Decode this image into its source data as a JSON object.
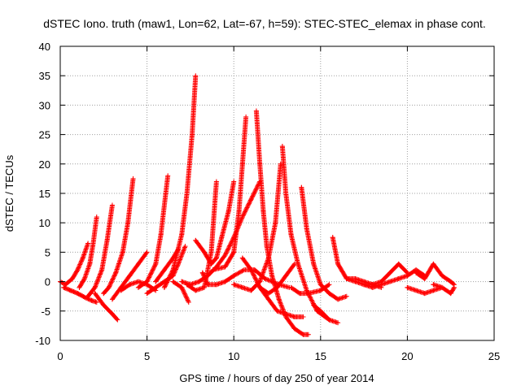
{
  "chart_data": {
    "type": "scatter",
    "title": "dSTEC Iono. truth (maw1, Lon=62, Lat=-67, h=59): STEC-STEC_elemax in phase cont.",
    "xlabel": "GPS time / hours of day 250 of year 2014",
    "ylabel": "dSTEC  / TECUs",
    "xlim": [
      0,
      25
    ],
    "ylim": [
      -10,
      40
    ],
    "xticks": [
      "0",
      "5",
      "10",
      "15",
      "20",
      "25"
    ],
    "yticks": [
      "-10",
      "-5",
      "0",
      "5",
      "10",
      "15",
      "20",
      "25",
      "30",
      "35",
      "40"
    ],
    "grid": true,
    "marker": "+",
    "color": "#ff0000",
    "series": [
      {
        "x": [
          0.0,
          0.3,
          0.7,
          1.0,
          1.3,
          1.6
        ],
        "y": [
          0.0,
          -0.5,
          0.5,
          2.0,
          4.0,
          6.5
        ]
      },
      {
        "x": [
          0.2,
          0.6,
          1.0,
          1.5,
          1.8,
          2.1
        ],
        "y": [
          -1.0,
          -1.5,
          -2.0,
          -2.8,
          -3.2,
          -3.5
        ]
      },
      {
        "x": [
          1.1,
          1.4,
          1.7,
          1.9,
          2.1
        ],
        "y": [
          -1.0,
          0.5,
          3.0,
          6.5,
          11.0
        ]
      },
      {
        "x": [
          1.6,
          2.0,
          2.4,
          2.7,
          3.0
        ],
        "y": [
          -2.5,
          -1.0,
          2.0,
          7.0,
          13.0
        ]
      },
      {
        "x": [
          2.0,
          2.5,
          3.0,
          3.3
        ],
        "y": [
          -2.0,
          -4.0,
          -5.5,
          -6.5
        ]
      },
      {
        "x": [
          2.5,
          2.8,
          3.2,
          3.6,
          3.9,
          4.2
        ],
        "y": [
          -2.0,
          -1.0,
          1.5,
          5.0,
          10.0,
          17.5
        ]
      },
      {
        "x": [
          3.0,
          3.5,
          4.0,
          4.5,
          5.0
        ],
        "y": [
          -3.0,
          -1.0,
          1.0,
          3.0,
          5.0
        ]
      },
      {
        "x": [
          3.5,
          4.0,
          4.5,
          5.0,
          5.5
        ],
        "y": [
          -1.5,
          -0.5,
          0.0,
          -0.5,
          -1.5
        ]
      },
      {
        "x": [
          4.5,
          5.0,
          5.5,
          5.8,
          6.2
        ],
        "y": [
          -1.0,
          0.0,
          3.0,
          8.0,
          18.0
        ]
      },
      {
        "x": [
          5.5,
          6.0,
          6.5,
          6.8
        ],
        "y": [
          0.0,
          2.0,
          4.0,
          5.5
        ]
      },
      {
        "x": [
          5.0,
          5.5,
          6.0,
          6.5,
          6.8,
          7.2
        ],
        "y": [
          -2.0,
          -1.0,
          0.0,
          1.0,
          3.0,
          6.0
        ]
      },
      {
        "x": [
          6.0,
          6.5,
          7.0,
          7.3,
          7.6,
          7.8
        ],
        "y": [
          -1.0,
          2.0,
          8.0,
          15.0,
          25.0,
          35.0
        ]
      },
      {
        "x": [
          6.5,
          7.0,
          7.4
        ],
        "y": [
          0.0,
          -1.0,
          -3.5
        ]
      },
      {
        "x": [
          7.0,
          7.5,
          8.0,
          8.5,
          9.0,
          9.5,
          10.0,
          10.5,
          11.0,
          11.5
        ],
        "y": [
          0.0,
          -0.5,
          0.0,
          1.0,
          2.5,
          4.5,
          7.5,
          11.0,
          14.0,
          17.0
        ]
      },
      {
        "x": [
          7.8,
          8.3,
          8.7,
          9.0,
          9.3,
          9.7,
          10.0
        ],
        "y": [
          7.0,
          5.0,
          3.0,
          4.0,
          7.5,
          12.0,
          17.0
        ]
      },
      {
        "x": [
          7.3,
          7.8,
          8.3,
          8.7,
          9.0
        ],
        "y": [
          -0.5,
          -1.5,
          -1.0,
          5.0,
          17.0
        ]
      },
      {
        "x": [
          8.2,
          8.5,
          9.0,
          9.5,
          10.0,
          10.6,
          11.2,
          11.8,
          12.6,
          13.2
        ],
        "y": [
          1.5,
          -0.5,
          -0.5,
          0.0,
          1.0,
          2.0,
          2.0,
          0.5,
          -0.5,
          -1.0
        ]
      },
      {
        "x": [
          8.8,
          9.5,
          10.0,
          10.3,
          10.5,
          10.7
        ],
        "y": [
          2.0,
          2.5,
          5.0,
          12.0,
          20.0,
          28.0
        ]
      },
      {
        "x": [
          10.5,
          11.0,
          11.5,
          12.0,
          12.5,
          13.0,
          13.5,
          14.0
        ],
        "y": [
          4.0,
          2.0,
          -1.0,
          -3.0,
          -5.0,
          -5.5,
          -6.0,
          -6.0
        ]
      },
      {
        "x": [
          10.0,
          10.5,
          11.0,
          11.5,
          12.0,
          12.4,
          12.7
        ],
        "y": [
          -0.5,
          -1.0,
          -1.5,
          0.0,
          4.0,
          10.0,
          20.0
        ]
      },
      {
        "x": [
          11.3,
          11.5,
          11.7,
          11.9,
          12.2,
          12.6,
          13.0,
          13.5,
          14.0,
          14.3
        ],
        "y": [
          29.0,
          20.0,
          12.0,
          6.0,
          1.0,
          -3.0,
          -6.0,
          -8.0,
          -9.0,
          -9.0
        ]
      },
      {
        "x": [
          11.5,
          12.0,
          12.5,
          13.0,
          13.5
        ],
        "y": [
          -1.0,
          -2.0,
          -1.0,
          1.0,
          3.0
        ]
      },
      {
        "x": [
          12.8,
          13.0,
          13.3,
          13.7,
          14.2,
          14.8,
          15.5
        ],
        "y": [
          23.0,
          15.0,
          8.0,
          3.0,
          -1.5,
          -5.0,
          -6.5
        ]
      },
      {
        "x": [
          13.3,
          13.8,
          14.3,
          15.0,
          15.5
        ],
        "y": [
          -1.0,
          -2.0,
          -2.0,
          -1.5,
          -0.5
        ]
      },
      {
        "x": [
          13.9,
          14.2,
          14.6,
          15.0,
          15.5,
          16.0,
          16.5
        ],
        "y": [
          16.0,
          9.0,
          3.0,
          -0.5,
          -2.0,
          -3.0,
          -2.5
        ]
      },
      {
        "x": [
          14.6,
          15.0,
          15.5,
          16.0
        ],
        "y": [
          -4.0,
          -5.0,
          -6.5,
          -7.0
        ]
      },
      {
        "x": [
          15.7,
          16.0,
          16.5,
          17.0,
          17.5,
          18.0,
          18.5
        ],
        "y": [
          7.5,
          3.0,
          0.5,
          0.0,
          -0.5,
          -0.5,
          -1.0
        ]
      },
      {
        "x": [
          16.5,
          17.0,
          17.5,
          18.0,
          18.5,
          19.0,
          19.5,
          20.0
        ],
        "y": [
          0.5,
          0.5,
          0.0,
          -0.5,
          0.0,
          1.5,
          3.0,
          1.5
        ]
      },
      {
        "x": [
          17.5,
          18.0,
          18.5,
          19.0,
          19.5,
          20.0,
          20.5,
          21.0
        ],
        "y": [
          -0.5,
          -1.0,
          -0.5,
          0.0,
          0.5,
          1.0,
          2.0,
          1.0
        ]
      },
      {
        "x": [
          20.0,
          20.5,
          21.0,
          21.5,
          22.0
        ],
        "y": [
          -1.0,
          -1.5,
          -2.0,
          -1.5,
          -1.0
        ]
      },
      {
        "x": [
          20.5,
          21.0,
          21.5,
          22.0,
          22.5,
          22.7
        ],
        "y": [
          1.5,
          0.5,
          3.0,
          1.0,
          0.0,
          -0.5
        ]
      },
      {
        "x": [
          21.5,
          22.0,
          22.5,
          22.7
        ],
        "y": [
          -0.5,
          -1.0,
          -2.0,
          -1.0
        ]
      }
    ]
  }
}
